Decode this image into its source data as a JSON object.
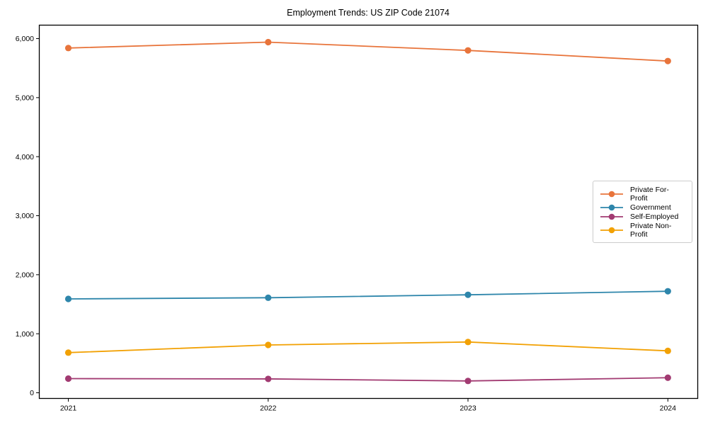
{
  "chart_data": {
    "type": "line",
    "title": "Employment Trends: US ZIP Code 21074",
    "xlabel": "",
    "ylabel": "",
    "categories": [
      2021,
      2022,
      2023,
      2024
    ],
    "x_tick_labels": [
      "2021",
      "2022",
      "2023",
      "2024"
    ],
    "y_ticks": [
      0,
      1000,
      2000,
      3000,
      4000,
      5000,
      6000
    ],
    "y_tick_labels": [
      "0",
      "1,000",
      "2,000",
      "3,000",
      "4,000",
      "5,000",
      "6,000"
    ],
    "ylim": [
      0,
      6000
    ],
    "grid": false,
    "legend_position": "center-right",
    "marker": "circle",
    "series": [
      {
        "name": "Private For-Profit",
        "color": "#E8743B",
        "values": [
          5840,
          5940,
          5800,
          5620
        ]
      },
      {
        "name": "Government",
        "color": "#2E86AB",
        "values": [
          1590,
          1610,
          1660,
          1720
        ]
      },
      {
        "name": "Self-Employed",
        "color": "#A23B72",
        "values": [
          240,
          235,
          200,
          255
        ]
      },
      {
        "name": "Private Non-Profit",
        "color": "#F2A104",
        "values": [
          680,
          810,
          860,
          710
        ]
      }
    ]
  }
}
